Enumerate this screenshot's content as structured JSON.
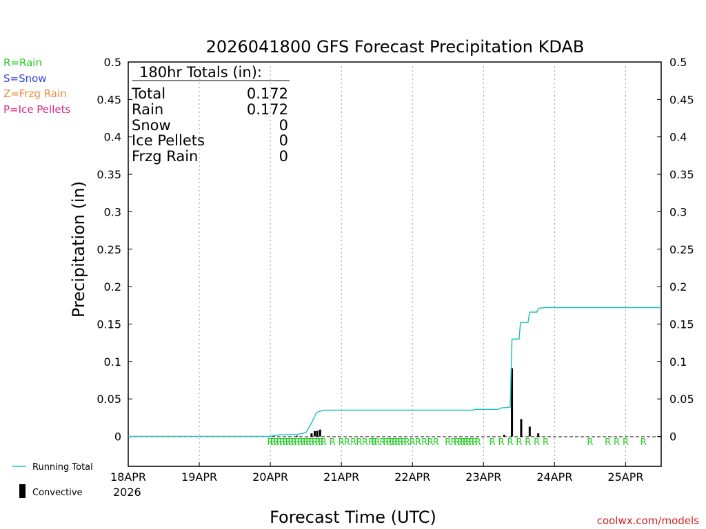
{
  "chart_data": {
    "type": "line",
    "title": "2026041800 GFS Forecast Precipitation KDAB",
    "xlabel": "Forecast Time (UTC)",
    "ylabel": "Precipitation (in)",
    "ylim": [
      -0.04,
      0.5
    ],
    "xlim_days": [
      0,
      7.5
    ],
    "y_ticks": [
      0,
      0.05,
      0.1,
      0.15,
      0.2,
      0.25,
      0.3,
      0.35,
      0.4,
      0.45,
      0.5
    ],
    "y_tick_labels": [
      "0",
      "0.05",
      "0.1",
      "0.15",
      "0.2",
      "0.25",
      "0.3",
      "0.35",
      "0.4",
      "0.45",
      "0.5"
    ],
    "x_ticks": [
      {
        "day": 0,
        "label": "18APR"
      },
      {
        "day": 1,
        "label": "19APR"
      },
      {
        "day": 2,
        "label": "20APR"
      },
      {
        "day": 3,
        "label": "21APR"
      },
      {
        "day": 4,
        "label": "22APR"
      },
      {
        "day": 5,
        "label": "23APR"
      },
      {
        "day": 6,
        "label": "24APR"
      },
      {
        "day": 7,
        "label": "25APR"
      }
    ],
    "x_year_label": "2026",
    "grid": "vertical-dotted",
    "series": [
      {
        "name": "Running Total",
        "color": "#22c0c0",
        "points": [
          [
            0,
            0
          ],
          [
            2.0,
            0
          ],
          [
            2.125,
            0.002
          ],
          [
            2.25,
            0.002
          ],
          [
            2.375,
            0.0025
          ],
          [
            2.5,
            0.005
          ],
          [
            2.58,
            0.018
          ],
          [
            2.65,
            0.032
          ],
          [
            2.75,
            0.035
          ],
          [
            3.0,
            0.035
          ],
          [
            4.0,
            0.035
          ],
          [
            4.5,
            0.035
          ],
          [
            4.85,
            0.035
          ],
          [
            4.875,
            0.036
          ],
          [
            5.0,
            0.036
          ],
          [
            5.2,
            0.036
          ],
          [
            5.25,
            0.038
          ],
          [
            5.375,
            0.039
          ],
          [
            5.4,
            0.13
          ],
          [
            5.5,
            0.13
          ],
          [
            5.52,
            0.152
          ],
          [
            5.625,
            0.152
          ],
          [
            5.65,
            0.166
          ],
          [
            5.75,
            0.166
          ],
          [
            5.775,
            0.171
          ],
          [
            5.875,
            0.172
          ],
          [
            7.5,
            0.172
          ]
        ]
      },
      {
        "name": "Convective",
        "color": "#000000",
        "type": "bar",
        "bars": [
          {
            "day": 2.375,
            "value": 0.0008
          },
          {
            "day": 2.58,
            "value": 0.004
          },
          {
            "day": 2.625,
            "value": 0.007
          },
          {
            "day": 2.66,
            "value": 0.0075
          },
          {
            "day": 2.7,
            "value": 0.009
          },
          {
            "day": 5.29,
            "value": 0.002
          },
          {
            "day": 5.4,
            "value": 0.091
          },
          {
            "day": 5.53,
            "value": 0.023
          },
          {
            "day": 5.65,
            "value": 0.013
          },
          {
            "day": 5.77,
            "value": 0.004
          }
        ]
      }
    ],
    "ptype_markers": {
      "color": "#22cc22",
      "days": [
        2.0,
        2.04,
        2.08,
        2.125,
        2.17,
        2.21,
        2.25,
        2.29,
        2.33,
        2.375,
        2.42,
        2.46,
        2.5,
        2.54,
        2.58,
        2.625,
        2.67,
        2.71,
        2.75,
        2.875,
        3.0,
        3.08,
        3.17,
        3.25,
        3.33,
        3.42,
        3.46,
        3.5,
        3.58,
        3.625,
        3.67,
        3.71,
        3.75,
        3.79,
        3.83,
        3.875,
        3.92,
        4.0,
        4.08,
        4.17,
        4.25,
        4.33,
        4.5,
        4.58,
        4.625,
        4.67,
        4.71,
        4.75,
        4.79,
        4.83,
        4.875,
        4.92,
        5.125,
        5.25,
        5.375,
        5.5,
        5.625,
        5.75,
        5.875,
        6.5,
        6.75,
        6.875,
        7.0,
        7.25
      ]
    },
    "totals_box": {
      "header": "180hr Totals (in):",
      "rows": [
        {
          "label": "Total",
          "value": "0.172"
        },
        {
          "label": "Rain",
          "value": "0.172"
        },
        {
          "label": "Snow",
          "value": "0"
        },
        {
          "label": "Ice Pellets",
          "value": "0"
        },
        {
          "label": "Frzg Rain",
          "value": "0"
        }
      ]
    }
  },
  "legend": {
    "ptypes": [
      {
        "text": "R=Rain",
        "color": "#22cc22"
      },
      {
        "text": "S=Snow",
        "color": "#3344dd"
      },
      {
        "text": "Z=Frzg Rain",
        "color": "#ee8833"
      },
      {
        "text": "P=Ice Pellets",
        "color": "#dd2288"
      }
    ],
    "running_total_label": "Running Total",
    "convective_label": "Convective"
  },
  "marker_letter": "R",
  "credit": {
    "text": "coolwx.com/models",
    "color": "#cc2222"
  }
}
